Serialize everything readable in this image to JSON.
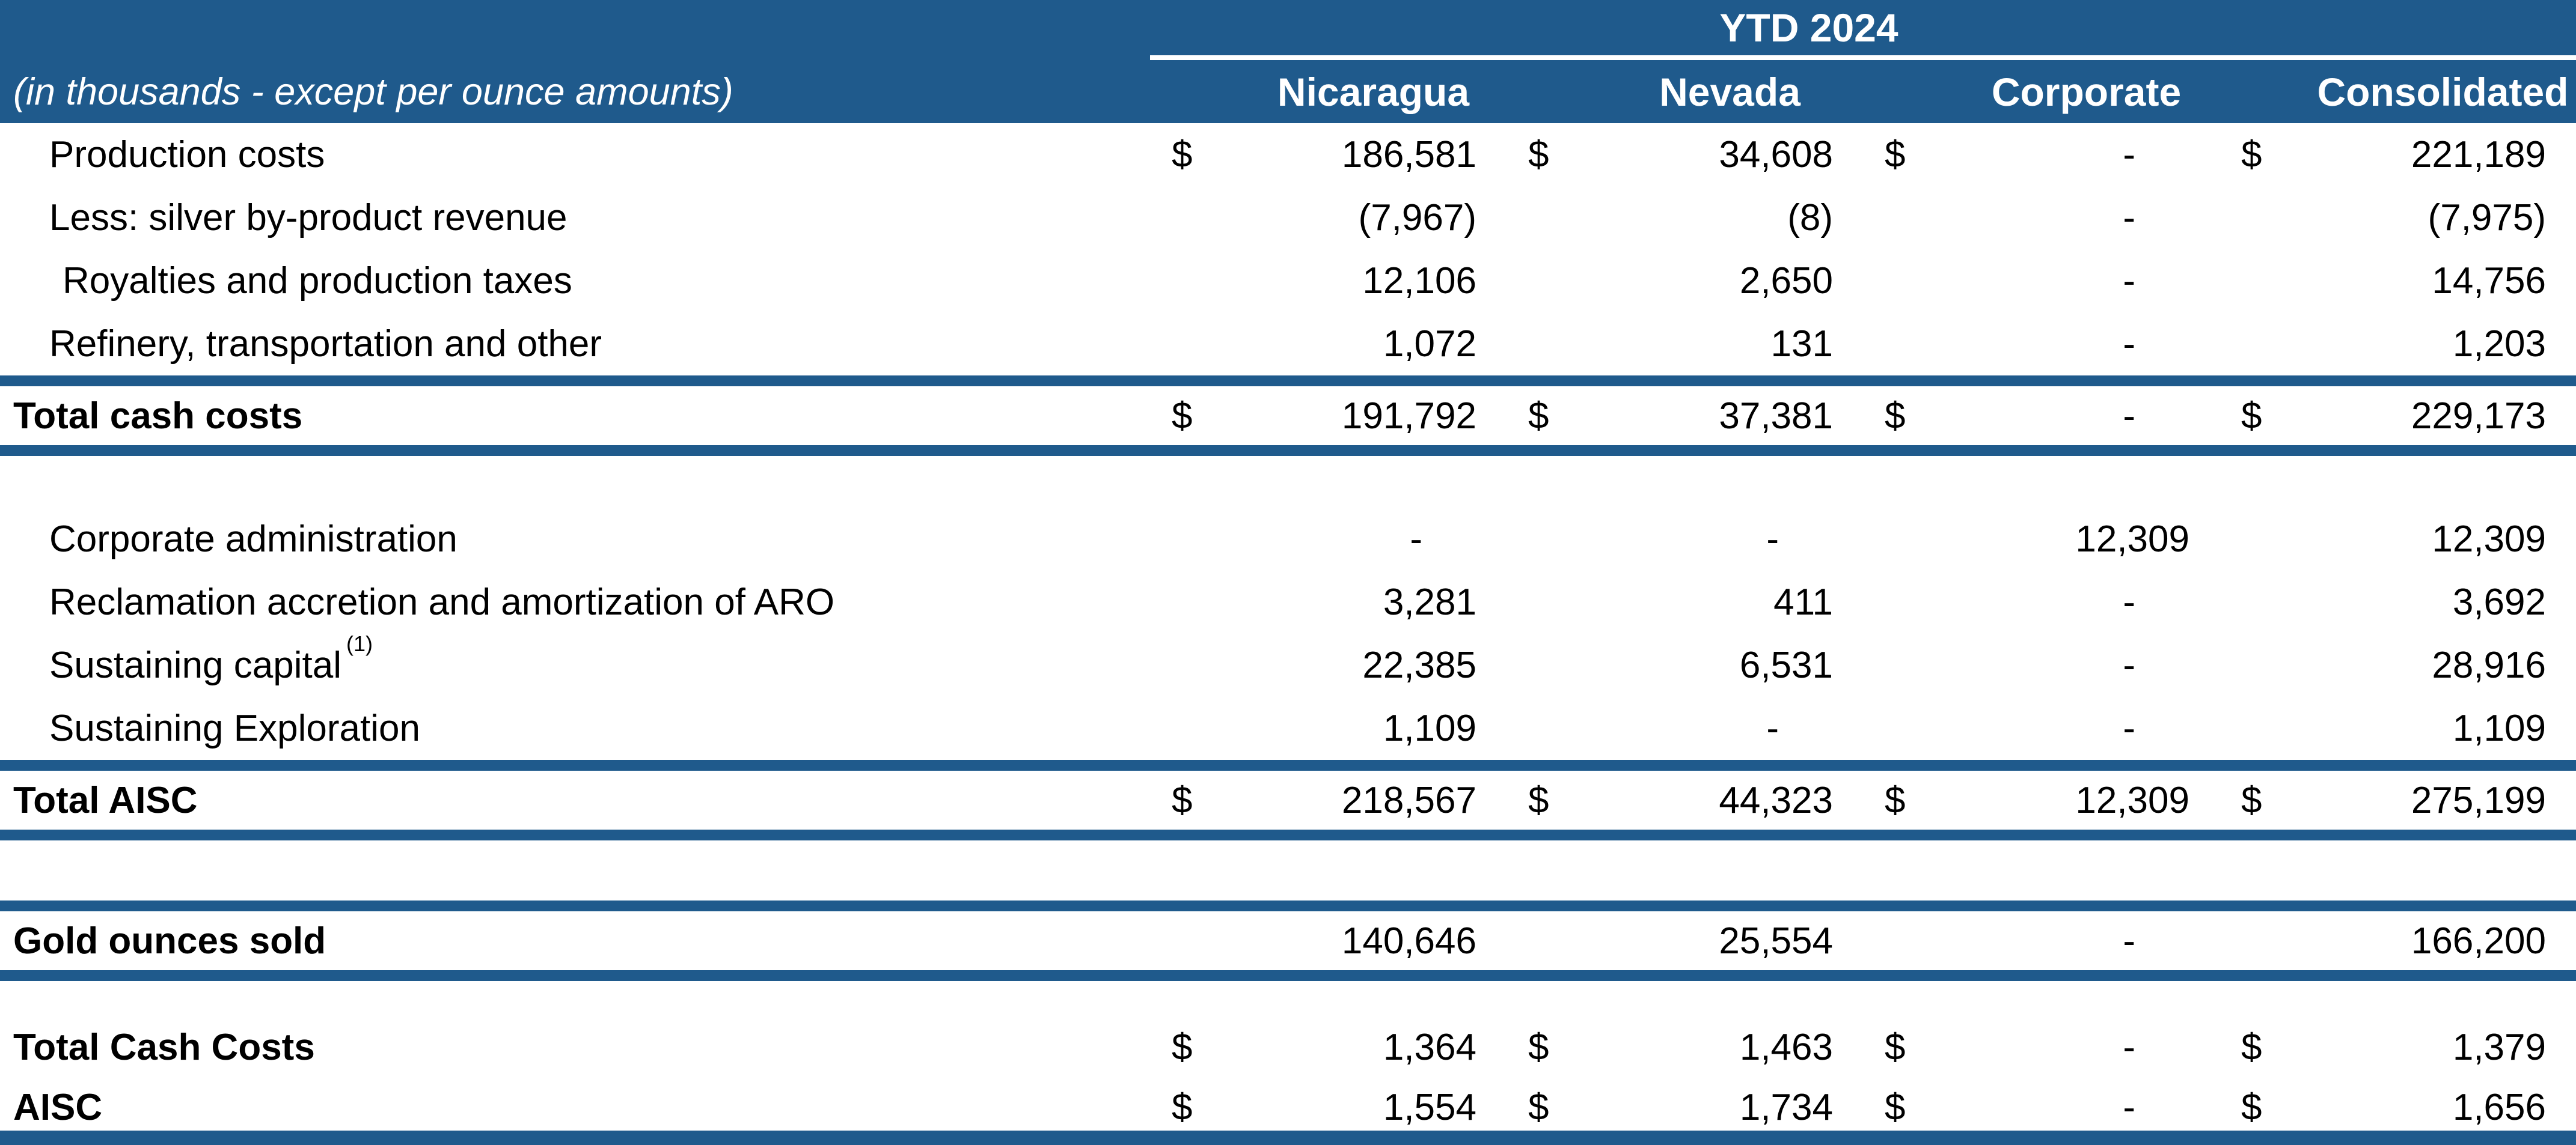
{
  "meta": {
    "accent_color": "#1F5A8C",
    "header_text_color": "#FFFFFF",
    "body_text_color": "#000000"
  },
  "table": {
    "period_header": "YTD 2024",
    "units_note": "(in thousands - except per ounce amounts)",
    "currency_symbol": "$",
    "columns": [
      "Nicaragua",
      "Nevada",
      "Corporate",
      "Consolidated"
    ],
    "rows": [
      {
        "label": "Production costs",
        "dollar": true,
        "values": [
          "186,581",
          "34,608",
          "-",
          "221,189"
        ]
      },
      {
        "label": "Less: silver by-product revenue",
        "dollar": false,
        "values": [
          "(7,967)",
          "(8)",
          "-",
          "(7,975)"
        ]
      },
      {
        "label": "Royalties and production taxes",
        "dollar": false,
        "indent": true,
        "values": [
          "12,106",
          "2,650",
          "-",
          "14,756"
        ]
      },
      {
        "label": "Refinery, transportation and other",
        "dollar": false,
        "values": [
          "1,072",
          "131",
          "-",
          "1,203"
        ]
      },
      {
        "label": "Total cash costs",
        "dollar": true,
        "total": true,
        "values": [
          "191,792",
          "37,381",
          "-",
          "229,173"
        ]
      },
      {
        "type": "spacer",
        "height": 86
      },
      {
        "label": "Corporate administration",
        "dollar": false,
        "values": [
          "-",
          "-",
          "12,309",
          "12,309"
        ]
      },
      {
        "label": "Reclamation accretion and amortization of ARO",
        "dollar": false,
        "values": [
          "3,281",
          "411",
          "-",
          "3,692"
        ]
      },
      {
        "label": "Sustaining capital",
        "sup": "(1)",
        "dollar": false,
        "values": [
          "22,385",
          "6,531",
          "-",
          "28,916"
        ]
      },
      {
        "label": "Sustaining Exploration",
        "dollar": false,
        "values": [
          "1,109",
          "-",
          "-",
          "1,109"
        ]
      },
      {
        "label": "Total AISC",
        "dollar": true,
        "total": true,
        "values": [
          "218,567",
          "44,323",
          "12,309",
          "275,199"
        ]
      },
      {
        "type": "spacer",
        "height": 100
      },
      {
        "label": "Gold ounces sold",
        "dollar": false,
        "total": true,
        "values": [
          "140,646",
          "25,554",
          "-",
          "166,200"
        ]
      },
      {
        "type": "spacer",
        "height": 60
      },
      {
        "label": "Total Cash Costs",
        "dollar": true,
        "bold_label": true,
        "values": [
          "1,364",
          "1,463",
          "-",
          "1,379"
        ]
      },
      {
        "label": "AISC",
        "dollar": true,
        "bold_label": true,
        "values": [
          "1,554",
          "1,734",
          "-",
          "1,656"
        ]
      }
    ]
  }
}
